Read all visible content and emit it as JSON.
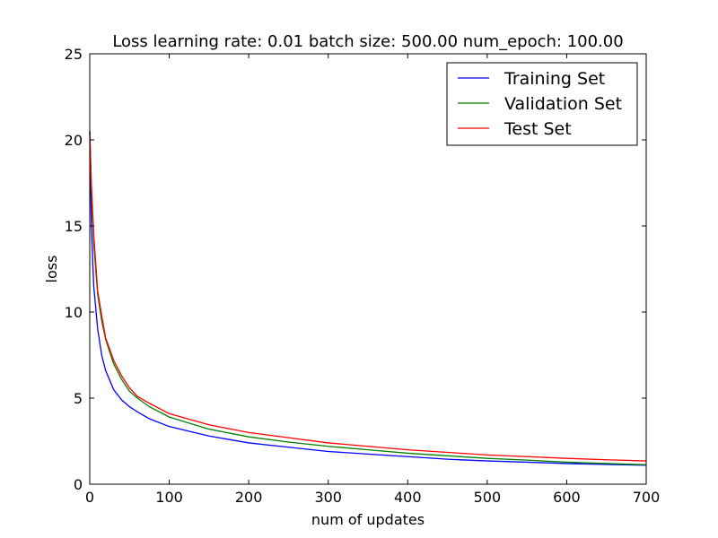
{
  "chart_data": {
    "type": "line",
    "title": "Loss learning rate: 0.01 batch size: 500.00 num_epoch: 100.00",
    "xlabel": "num of updates",
    "ylabel": "loss",
    "xlim": [
      0,
      700
    ],
    "ylim": [
      0,
      25
    ],
    "xticks": [
      0,
      100,
      200,
      300,
      400,
      500,
      600,
      700
    ],
    "yticks": [
      0,
      5,
      10,
      15,
      20,
      25
    ],
    "xtick_labels": [
      "0",
      "100",
      "200",
      "300",
      "400",
      "500",
      "600",
      "700"
    ],
    "ytick_labels": [
      "0",
      "5",
      "10",
      "15",
      "20",
      "25"
    ],
    "grid": false,
    "legend_position": "top-right",
    "series": [
      {
        "name": "Training Set",
        "color": "#0000ff",
        "points": [
          [
            0,
            20.5
          ],
          [
            2,
            15.0
          ],
          [
            5,
            11.5
          ],
          [
            10,
            9.0
          ],
          [
            15,
            7.5
          ],
          [
            20,
            6.6
          ],
          [
            30,
            5.5
          ],
          [
            40,
            4.9
          ],
          [
            50,
            4.5
          ],
          [
            60,
            4.2
          ],
          [
            75,
            3.8
          ],
          [
            100,
            3.35
          ],
          [
            150,
            2.8
          ],
          [
            200,
            2.4
          ],
          [
            250,
            2.15
          ],
          [
            300,
            1.9
          ],
          [
            350,
            1.75
          ],
          [
            400,
            1.6
          ],
          [
            450,
            1.45
          ],
          [
            500,
            1.35
          ],
          [
            550,
            1.28
          ],
          [
            600,
            1.2
          ],
          [
            650,
            1.15
          ],
          [
            700,
            1.1
          ]
        ]
      },
      {
        "name": "Validation Set",
        "color": "#008000",
        "points": [
          [
            0,
            20.5
          ],
          [
            2,
            17.0
          ],
          [
            5,
            14.0
          ],
          [
            10,
            11.0
          ],
          [
            15,
            9.5
          ],
          [
            20,
            8.4
          ],
          [
            30,
            7.0
          ],
          [
            40,
            6.1
          ],
          [
            50,
            5.4
          ],
          [
            60,
            5.0
          ],
          [
            75,
            4.5
          ],
          [
            100,
            3.9
          ],
          [
            150,
            3.2
          ],
          [
            200,
            2.75
          ],
          [
            250,
            2.45
          ],
          [
            300,
            2.2
          ],
          [
            350,
            2.0
          ],
          [
            400,
            1.8
          ],
          [
            450,
            1.65
          ],
          [
            500,
            1.5
          ],
          [
            550,
            1.4
          ],
          [
            600,
            1.28
          ],
          [
            650,
            1.2
          ],
          [
            700,
            1.13
          ]
        ]
      },
      {
        "name": "Test Set",
        "color": "#ff0000",
        "points": [
          [
            0,
            20.5
          ],
          [
            2,
            17.5
          ],
          [
            5,
            14.5
          ],
          [
            10,
            11.2
          ],
          [
            15,
            9.8
          ],
          [
            20,
            8.5
          ],
          [
            30,
            7.2
          ],
          [
            40,
            6.3
          ],
          [
            50,
            5.6
          ],
          [
            60,
            5.1
          ],
          [
            75,
            4.7
          ],
          [
            100,
            4.1
          ],
          [
            150,
            3.45
          ],
          [
            200,
            3.0
          ],
          [
            250,
            2.7
          ],
          [
            300,
            2.4
          ],
          [
            350,
            2.2
          ],
          [
            400,
            2.0
          ],
          [
            450,
            1.85
          ],
          [
            500,
            1.7
          ],
          [
            550,
            1.6
          ],
          [
            600,
            1.5
          ],
          [
            650,
            1.42
          ],
          [
            700,
            1.35
          ]
        ]
      }
    ]
  }
}
